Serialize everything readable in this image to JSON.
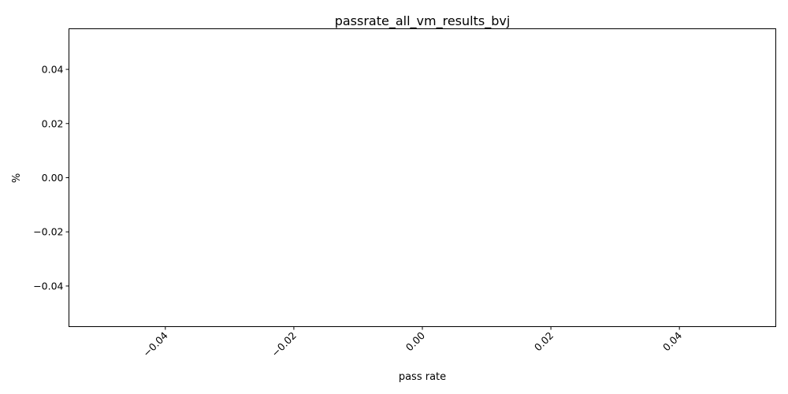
{
  "chart_data": {
    "type": "line",
    "title": "passrate_all_vm_results_bvj",
    "xlabel": "pass rate",
    "ylabel": "%",
    "series": [],
    "xlim": [
      -0.055,
      0.055
    ],
    "ylim": [
      -0.055,
      0.055
    ],
    "xticks": [
      {
        "value": -0.04,
        "label": "−0.04"
      },
      {
        "value": -0.02,
        "label": "−0.02"
      },
      {
        "value": 0.0,
        "label": "0.00"
      },
      {
        "value": 0.02,
        "label": "0.02"
      },
      {
        "value": 0.04,
        "label": "0.04"
      }
    ],
    "yticks": [
      {
        "value": 0.04,
        "label": "0.04"
      },
      {
        "value": 0.02,
        "label": "0.02"
      },
      {
        "value": 0.0,
        "label": "0.00"
      },
      {
        "value": -0.02,
        "label": "−0.02"
      },
      {
        "value": -0.04,
        "label": "−0.04"
      }
    ],
    "xtick_rotation_deg": 45,
    "grid": false,
    "legend": "none"
  }
}
